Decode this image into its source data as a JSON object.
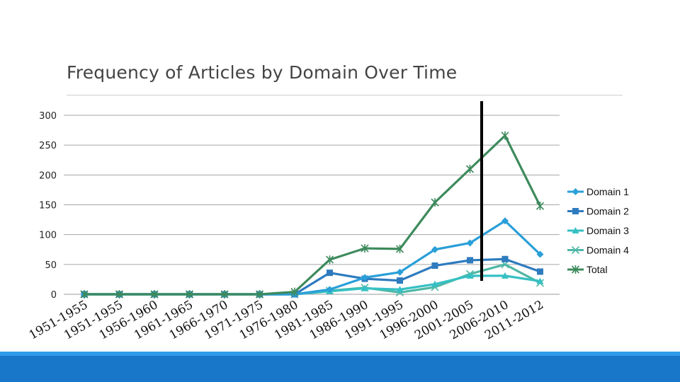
{
  "chart_data": {
    "type": "line",
    "title": "Frequency of Articles by Domain Over Time",
    "xlabel": "",
    "ylabel": "",
    "ylim": [
      0,
      300
    ],
    "yticks": [
      0,
      50,
      100,
      150,
      200,
      250,
      300
    ],
    "grid": true,
    "legend_position": "right",
    "categories": [
      "1951-1955",
      "1951-1955",
      "1956-1960",
      "1961-1965",
      "1966-1970",
      "1971-1975",
      "1976-1980",
      "1981-1985",
      "1986-1990",
      "1991-1995",
      "1996-2000",
      "2001-2005",
      "2006-2010",
      "2011-2012"
    ],
    "marker_line_category": "2006-2010",
    "series": [
      {
        "name": "Domain 1",
        "color": "#2a9fd8",
        "marker": "diamond",
        "values": [
          0,
          0,
          0,
          0,
          0,
          0,
          0,
          8,
          28,
          37,
          75,
          86,
          123,
          67
        ]
      },
      {
        "name": "Domain 2",
        "color": "#2e7bbf",
        "marker": "square",
        "values": [
          0,
          0,
          0,
          0,
          0,
          0,
          0,
          36,
          26,
          23,
          48,
          57,
          59,
          38
        ]
      },
      {
        "name": "Domain 3",
        "color": "#36c0c4",
        "marker": "triangle",
        "values": [
          0,
          0,
          0,
          0,
          0,
          0,
          0,
          5,
          10,
          8,
          17,
          31,
          31,
          22
        ]
      },
      {
        "name": "Domain 4",
        "color": "#4fb8a6",
        "marker": "x",
        "values": [
          0,
          0,
          0,
          0,
          0,
          0,
          0,
          6,
          11,
          3,
          12,
          34,
          50,
          19
        ]
      },
      {
        "name": "Total",
        "color": "#3d8a5c",
        "marker": "star",
        "values": [
          0,
          0,
          0,
          0,
          0,
          0,
          4,
          58,
          77,
          76,
          154,
          210,
          266,
          148
        ]
      }
    ]
  }
}
